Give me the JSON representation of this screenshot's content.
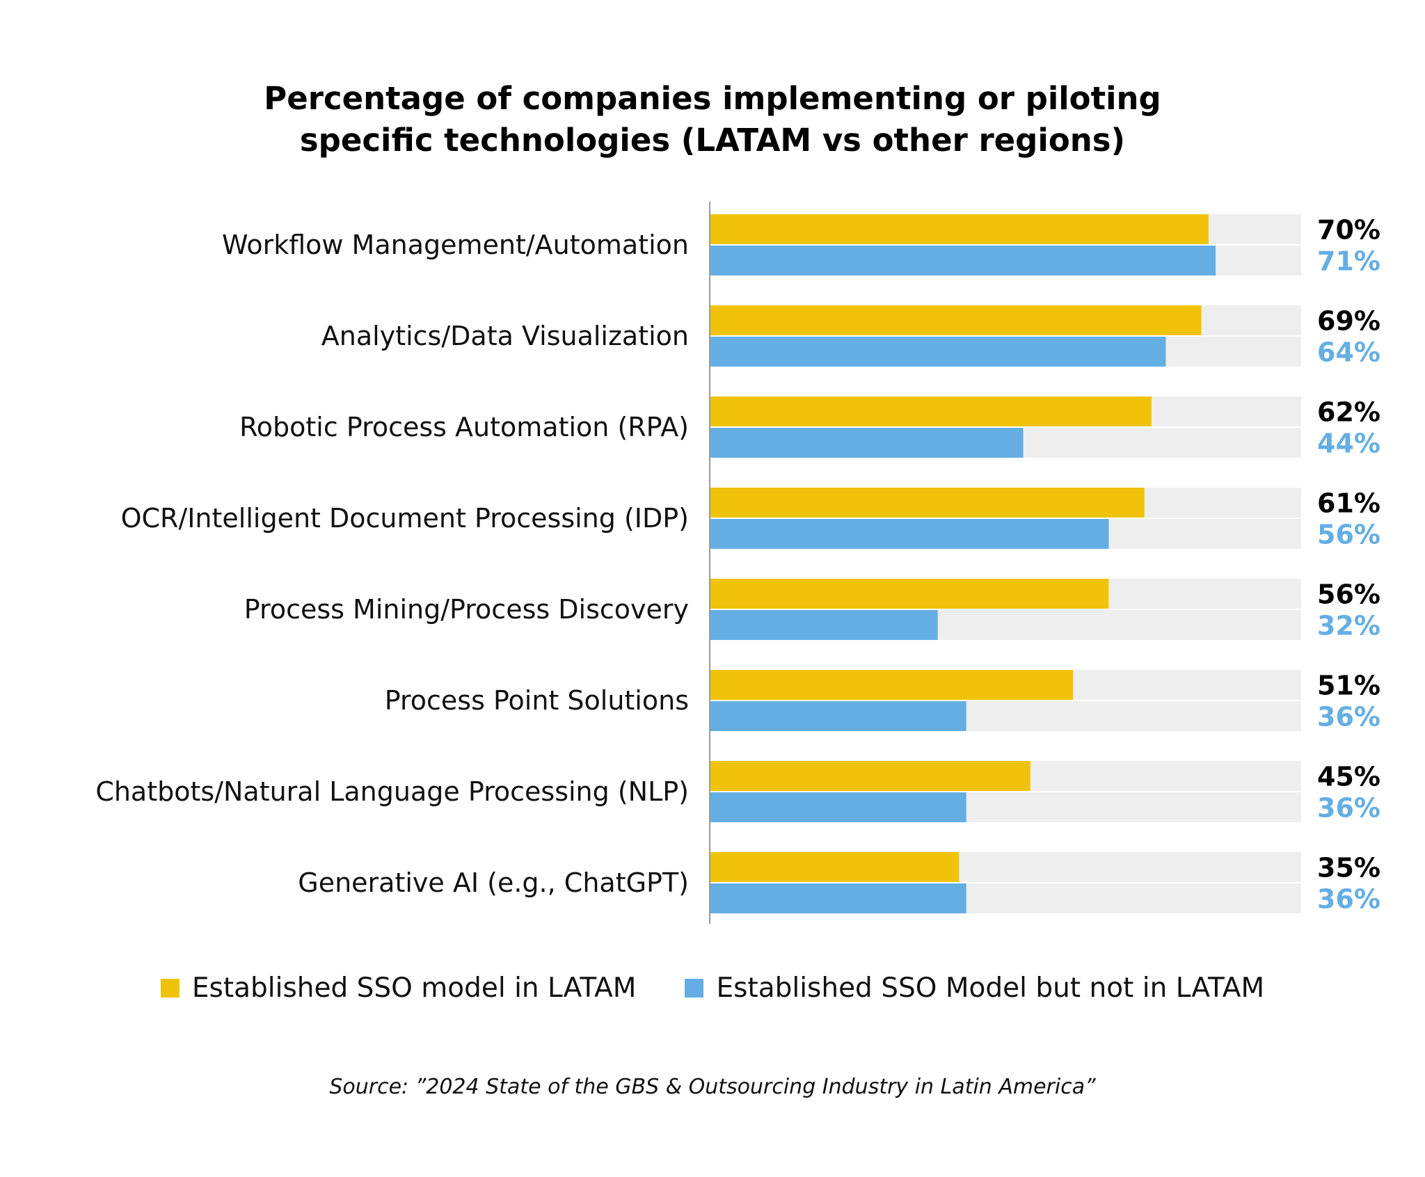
{
  "chart_data": {
    "type": "bar",
    "orientation": "horizontal",
    "title_lines": [
      "Percentage of companies implementing or piloting",
      "specific technologies (LATAM vs other regions)"
    ],
    "categories": [
      "Workflow Management/Automation",
      "Analytics/Data Visualization",
      "Robotic Process Automation (RPA)",
      "OCR/Intelligent Document Processing (IDP)",
      "Process Mining/Process Discovery",
      "Process Point Solutions",
      "Chatbots/Natural Language Processing (NLP)",
      "Generative AI (e.g., ChatGPT)"
    ],
    "series": [
      {
        "name": "Established SSO model in LATAM",
        "color": "#F0C30A",
        "label_color": "#000000",
        "values": [
          70,
          69,
          62,
          61,
          56,
          51,
          45,
          35
        ],
        "labels": [
          "70%",
          "69%",
          "62%",
          "61%",
          "56%",
          "51%",
          "45%",
          "35%"
        ]
      },
      {
        "name": "Established SSO Model but not in LATAM",
        "color": "#64AEE4",
        "label_color": "#64AEE4",
        "values": [
          71,
          64,
          44,
          56,
          32,
          36,
          36,
          36
        ],
        "labels": [
          "71%",
          "64%",
          "44%",
          "56%",
          "32%",
          "36%",
          "36%",
          "36%"
        ]
      }
    ],
    "xlim": [
      0,
      83
    ],
    "background_track_color": "#EEEEEE",
    "grid": false,
    "legend_position": "bottom"
  },
  "source_note": "Source: ”2024 State of the GBS & Outsourcing Industry in Latin America”"
}
